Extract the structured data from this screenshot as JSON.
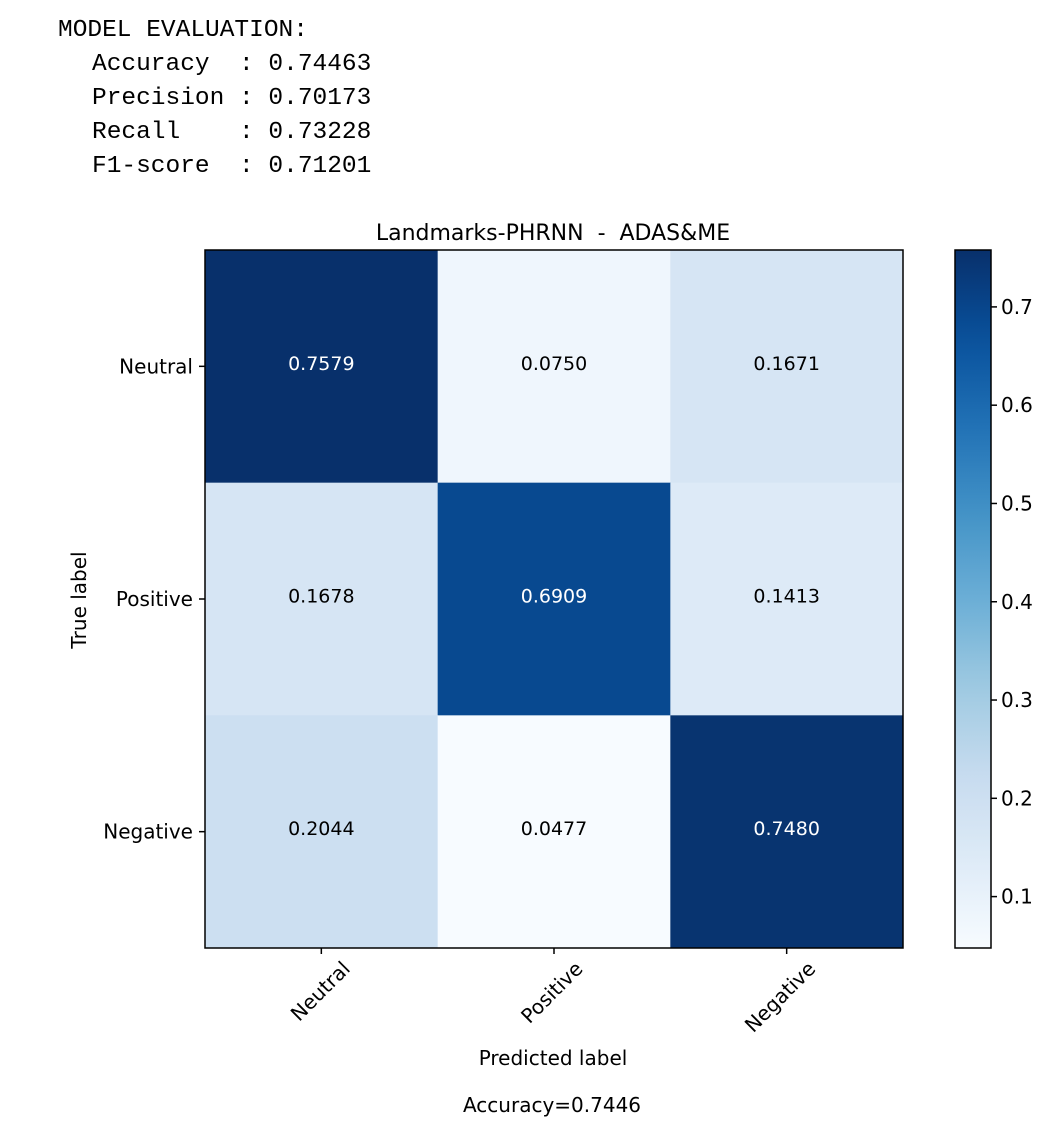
{
  "evaluation": {
    "header": "MODEL EVALUATION:",
    "metrics": [
      {
        "name": "Accuracy",
        "value": "0.74463"
      },
      {
        "name": "Precision",
        "value": "0.70173"
      },
      {
        "name": "Recall",
        "value": "0.73228"
      },
      {
        "name": "F1-score",
        "value": "0.71201"
      }
    ]
  },
  "chart_data": {
    "type": "heatmap",
    "title": "Landmarks-PHRNN  -  ADAS&ME",
    "xlabel": "Predicted label",
    "ylabel": "True label",
    "x_categories": [
      "Neutral",
      "Positive",
      "Negative"
    ],
    "y_categories": [
      "Neutral",
      "Positive",
      "Negative"
    ],
    "values": [
      [
        0.7579,
        0.075,
        0.1671
      ],
      [
        0.1678,
        0.6909,
        0.1413
      ],
      [
        0.2044,
        0.0477,
        0.748
      ]
    ],
    "value_labels": [
      [
        "0.7579",
        "0.0750",
        "0.1671"
      ],
      [
        "0.1678",
        "0.6909",
        "0.1413"
      ],
      [
        "0.2044",
        "0.0477",
        "0.7480"
      ]
    ],
    "colormap": "Blues",
    "colorbar_range": [
      0.0477,
      0.7579
    ],
    "colorbar_ticks": [
      0.1,
      0.2,
      0.3,
      0.4,
      0.5,
      0.6,
      0.7
    ],
    "colorbar_tick_labels": [
      "0.1",
      "0.2",
      "0.3",
      "0.4",
      "0.5",
      "0.6",
      "0.7"
    ],
    "footer": "Accuracy=0.7446"
  }
}
